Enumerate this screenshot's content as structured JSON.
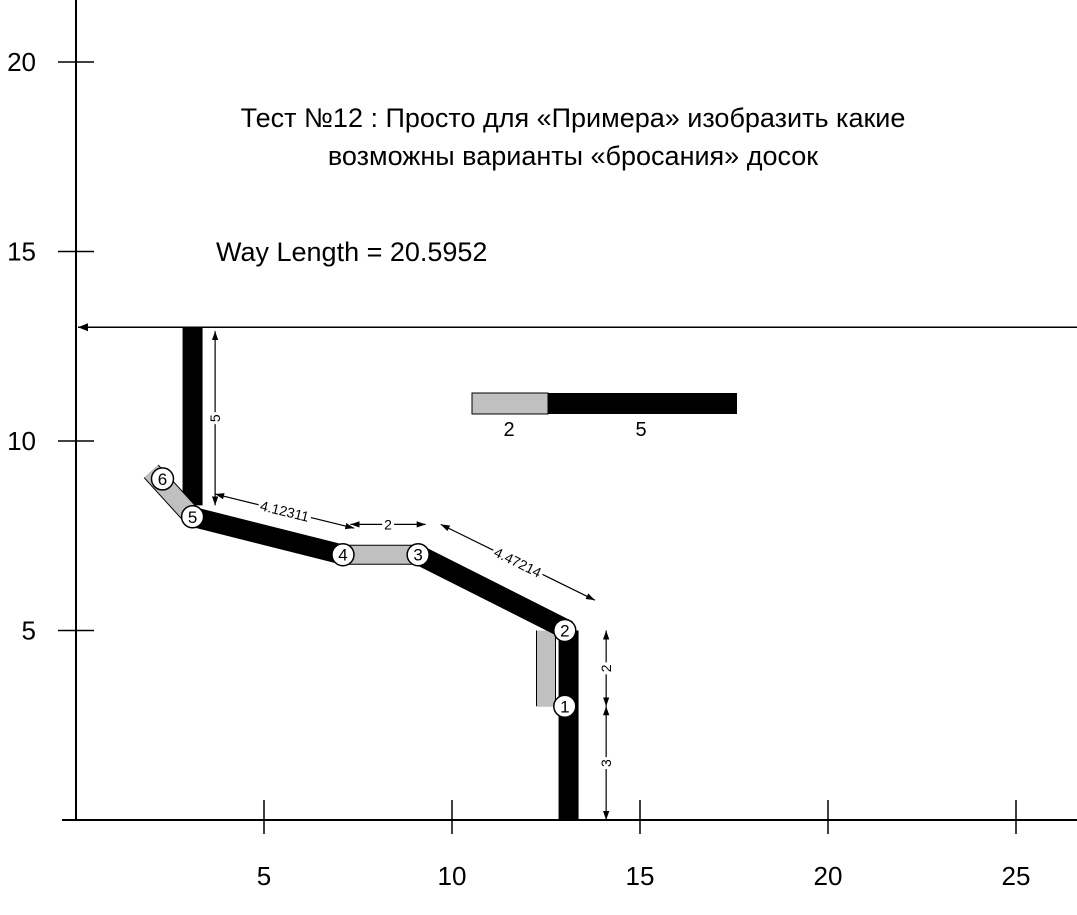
{
  "title_line1": "Тест №12 : Просто для «Примера» изобразить какие",
  "title_line2": "возможны варианты «бросания» досок",
  "way_length": "Way Length = 20.5952",
  "axes": {
    "x_ticks": [
      "5",
      "10",
      "15",
      "20",
      "25"
    ],
    "y_ticks": [
      "5",
      "10",
      "15",
      "20"
    ],
    "x_range": [
      0,
      26.5
    ],
    "y_range": [
      0,
      21.3
    ]
  },
  "legend": {
    "gray_label": "2",
    "black_label": "5",
    "gray_color": "#c0c0c0",
    "black_color": "#000000"
  },
  "target_line_y": 13,
  "planks": [
    {
      "kind": "black",
      "from": [
        13.1,
        0
      ],
      "to": [
        13.1,
        5
      ]
    },
    {
      "kind": "gray",
      "from": [
        12.5,
        3
      ],
      "to": [
        12.5,
        5
      ]
    },
    {
      "kind": "black",
      "from": [
        13.1,
        5
      ],
      "to": [
        9.1,
        7
      ]
    },
    {
      "kind": "gray",
      "from": [
        9.1,
        7
      ],
      "to": [
        7.1,
        7
      ]
    },
    {
      "kind": "black",
      "from": [
        7.1,
        7
      ],
      "to": [
        3.1,
        8
      ]
    },
    {
      "kind": "black",
      "from": [
        3.1,
        8.3
      ],
      "to": [
        3.1,
        13
      ]
    },
    {
      "kind": "gray",
      "from": [
        3.1,
        8
      ],
      "to": [
        2,
        9.2
      ]
    }
  ],
  "nodes": [
    {
      "label": "1",
      "at": [
        13,
        3
      ]
    },
    {
      "label": "2",
      "at": [
        13,
        5
      ]
    },
    {
      "label": "3",
      "at": [
        9.1,
        7
      ]
    },
    {
      "label": "4",
      "at": [
        7.1,
        7
      ]
    },
    {
      "label": "5",
      "at": [
        3.1,
        8
      ]
    },
    {
      "label": "6",
      "at": [
        2.3,
        9
      ]
    }
  ],
  "dimensions": [
    {
      "label": "3",
      "from": [
        14.1,
        0
      ],
      "to": [
        14.1,
        3
      ]
    },
    {
      "label": "2",
      "from": [
        14.1,
        3
      ],
      "to": [
        14.1,
        5
      ]
    },
    {
      "label": "4.47214",
      "from": [
        9.7,
        7.8
      ],
      "to": [
        13.8,
        5.8
      ]
    },
    {
      "label": "2",
      "from": [
        7.3,
        7.8
      ],
      "to": [
        9.3,
        7.8
      ]
    },
    {
      "label": "4.12311",
      "from": [
        3.7,
        8.6
      ],
      "to": [
        7.4,
        7.7
      ]
    },
    {
      "label": "5",
      "from": [
        3.7,
        8.3
      ],
      "to": [
        3.7,
        12.9
      ]
    }
  ]
}
